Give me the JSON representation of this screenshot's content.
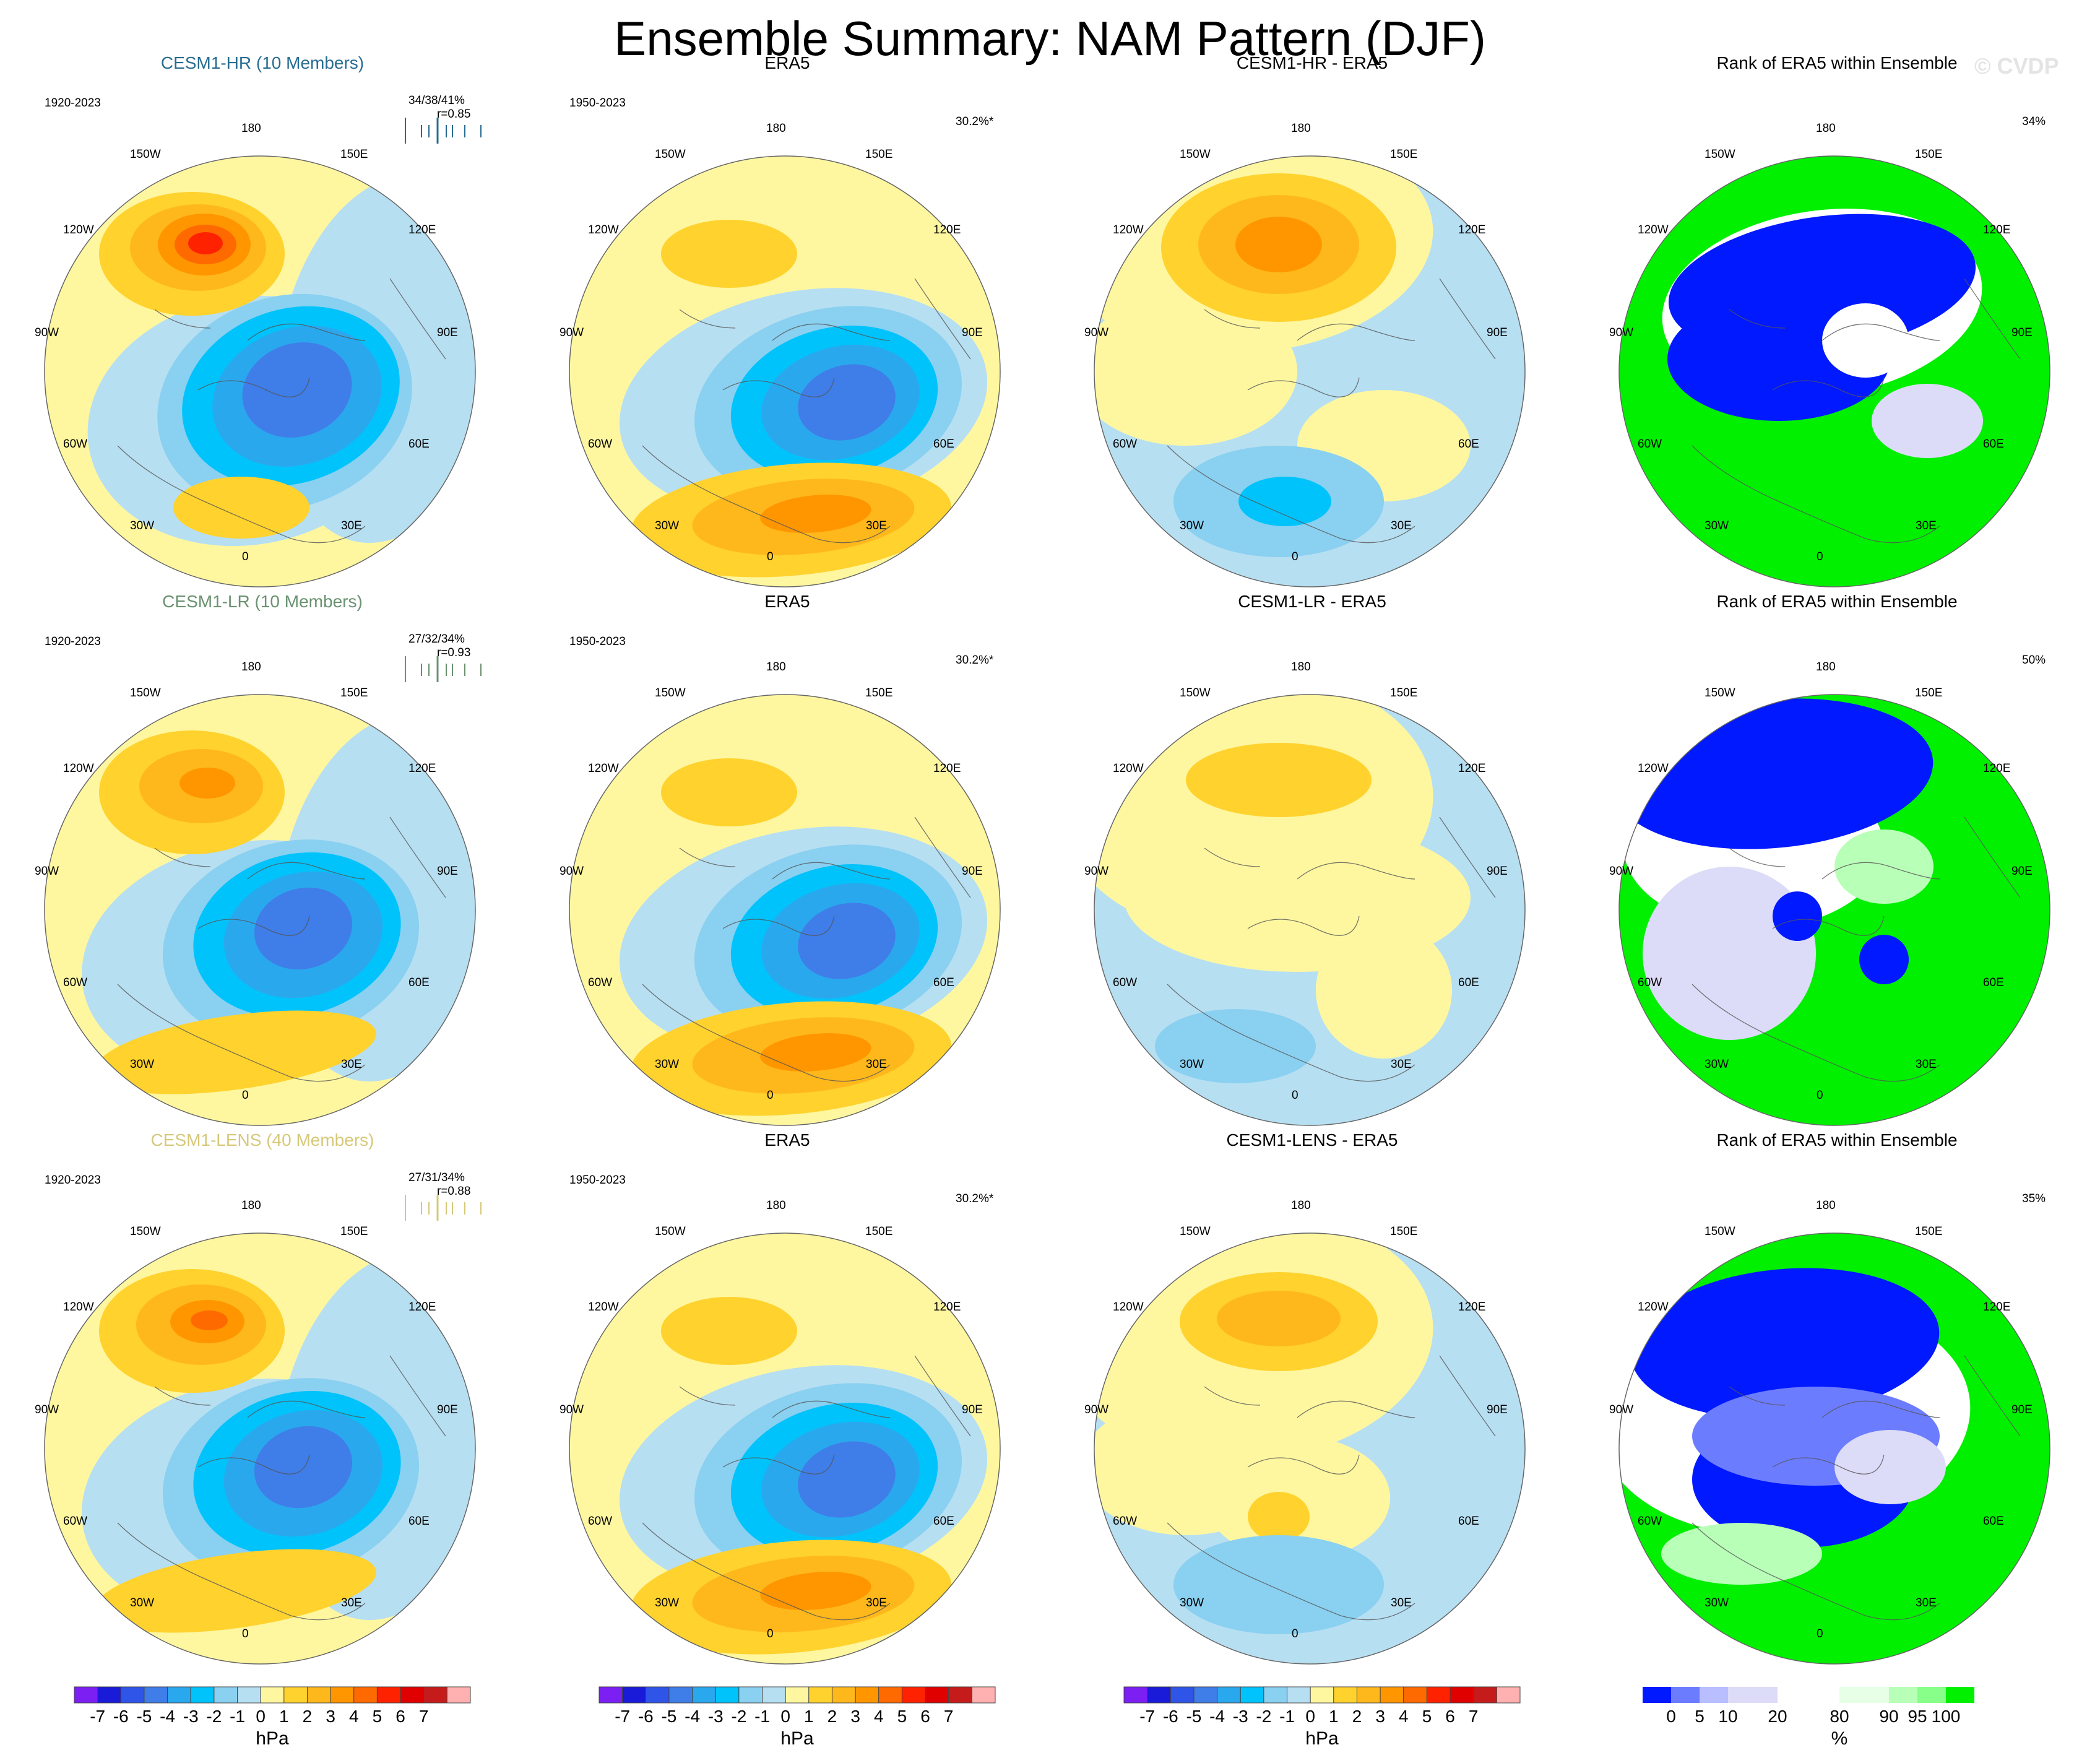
{
  "title": "Ensemble Summary: NAM Pattern (DJF)",
  "watermark": "© CVDP",
  "colors": {
    "hpa_scale": [
      "#7b1ff2",
      "#1a1ad9",
      "#2f54e8",
      "#3f7de8",
      "#2aa8ee",
      "#00c3fb",
      "#8ad0f0",
      "#b7dff2",
      "#fff7a0",
      "#ffd22e",
      "#ffb81c",
      "#ff9600",
      "#ff6a00",
      "#ff2200",
      "#e00000",
      "#c51b1b",
      "#ffb0b0"
    ],
    "rank_scale": [
      "#0019ff",
      "#6c7cff",
      "#b8beff",
      "#dcdcf8",
      "#ffffff",
      "#e6ffe6",
      "#b8ffb8",
      "#88ff88",
      "#00f000"
    ]
  },
  "rows": [
    {
      "ens_title": "CESM1-HR (10 Members)",
      "ens_color": "#276c92",
      "ens_years": "1920-2023",
      "ens_stats": "34/38/41%",
      "ens_r": "r=0.85",
      "diff_title": "CESM1-HR - ERA5",
      "rank_pct": "34%"
    },
    {
      "ens_title": "CESM1-LR (10 Members)",
      "ens_color": "#6a9270",
      "ens_years": "1920-2023",
      "ens_stats": "27/32/34%",
      "ens_r": "r=0.93",
      "diff_title": "CESM1-LR - ERA5",
      "rank_pct": "50%"
    },
    {
      "ens_title": "CESM1-LENS (40 Members)",
      "ens_color": "#d6c879",
      "ens_years": "1920-2023",
      "ens_stats": "27/31/34%",
      "ens_r": "r=0.88",
      "diff_title": "CESM1-LENS - ERA5",
      "rank_pct": "35%"
    }
  ],
  "obs": {
    "title": "ERA5",
    "years": "1950-2023",
    "pct": "30.2%*"
  },
  "rank_title": "Rank of ERA5 within Ensemble",
  "lon_labels": {
    "n": "180",
    "ne": "150E",
    "ene": "120E",
    "e": "90E",
    "ese": "60E",
    "se": "30E",
    "s": "0",
    "sw": "30W",
    "wsw": "60W",
    "w": "90W",
    "wnw": "120W",
    "nw": "150W"
  },
  "colorbars": {
    "hpa_ticks": [
      "-7",
      "-6",
      "-5",
      "-4",
      "-3",
      "-2",
      "-1",
      "0",
      "1",
      "2",
      "3",
      "4",
      "5",
      "6",
      "7"
    ],
    "hpa_unit": "hPa",
    "rank_ticks": [
      "0",
      "5",
      "10",
      "20",
      "80",
      "90",
      "95",
      "100"
    ],
    "rank_unit": "%"
  }
}
